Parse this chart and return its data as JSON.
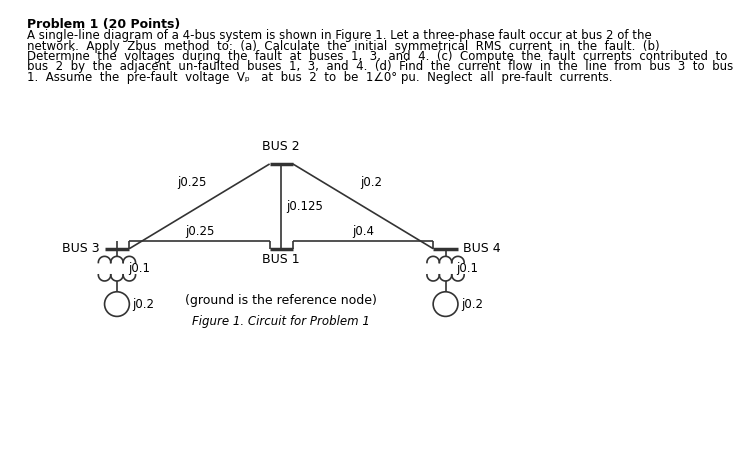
{
  "title_bold": "Problem 1 (20 Points)",
  "body_lines": [
    "A single-line diagram of a 4-bus system is shown in Figure 1. Let a three-phase fault occur at bus 2 of the",
    "network.  Apply  Zbus  method  to:  (a)  Calculate  the  initial  symmetrical  RMS  current  in  the  fault.  (b)",
    "Determine  the  voltages  during  the  fault  at  buses  1,  3,  and  4.  (c)  Compute  the  fault  currents  contributed  to",
    "bus  2  by  the  adjacent  un-faulted  buses  1,  3,  and  4.  (d)  Find  the  current  flow  in  the  line  from  bus  3  to  bus",
    "1.  Assume  the  pre-fault  voltage  Vₚ   at  bus  2  to  be  1∠0° pu.  Neglect  all  pre-fault  currents."
  ],
  "figure_caption": "Figure 1. Circuit for Problem 1",
  "ground_text": "(ground is the reference node)",
  "bus2_label": "BUS 2",
  "bus1_label": "BUS 1",
  "bus3_label": "BUS 3",
  "bus4_label": "BUS 4",
  "z_bus2_bus3": "j0.25",
  "z_bus2_bus4": "j0.2",
  "z_bus2_bus1": "j0.125",
  "z_bus1_bus3": "j0.25",
  "z_bus1_bus4": "j0.4",
  "z_gen3": "j0.1",
  "z_gen4": "j0.1",
  "z_src3": "j0.2",
  "z_src4": "j0.2",
  "bg_color": "#ffffff",
  "line_color": "#333333",
  "text_color": "#000000",
  "lw_thin": 1.2,
  "lw_bus": 2.5
}
